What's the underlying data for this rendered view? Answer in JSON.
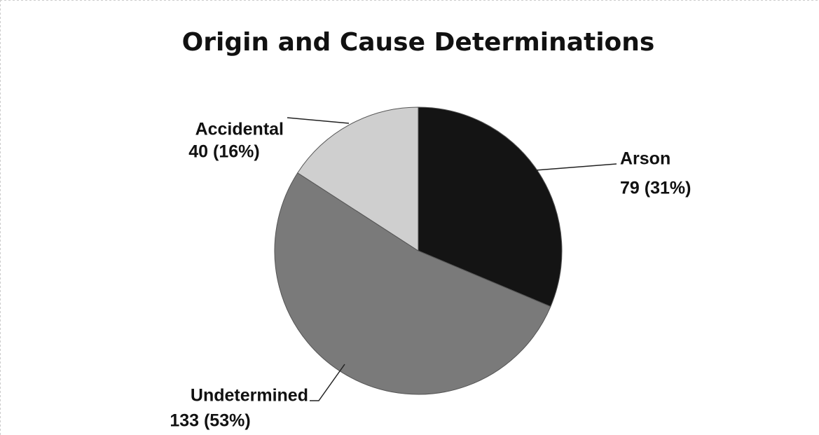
{
  "chart_data": {
    "type": "pie",
    "title": "Origin and Cause Determinations",
    "categories": [
      "Arson",
      "Undetermined",
      "Accidental"
    ],
    "values": [
      79,
      133,
      40
    ],
    "value_labels": [
      "79 (31%)",
      "133 (53%)",
      "40 (16%)"
    ],
    "colors": [
      "#141414",
      "#7a7a7a",
      "#cfcfcf"
    ]
  }
}
